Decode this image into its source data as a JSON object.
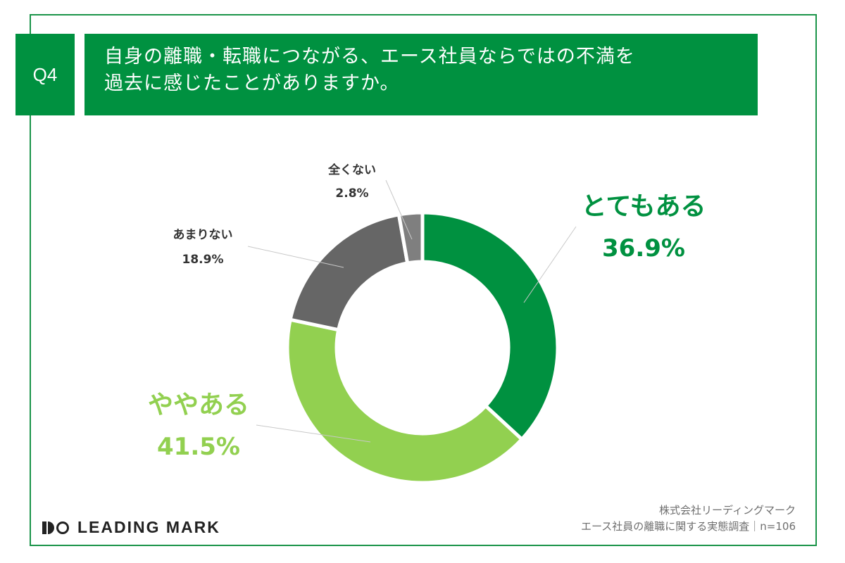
{
  "question": {
    "badge": "Q4",
    "lines": [
      "自身の離職・転職につながる、エース社員ならではの不満を",
      "過去に感じたことがありますか。"
    ]
  },
  "chart_data": {
    "type": "pie",
    "style": "donut",
    "start_angle_deg": 0,
    "direction": "clockwise",
    "slices": [
      {
        "label": "とてもある",
        "value": 36.9,
        "value_label": "36.9%",
        "color": "#009140"
      },
      {
        "label": "ややある",
        "value": 41.5,
        "value_label": "41.5%",
        "color": "#92d050"
      },
      {
        "label": "あまりない",
        "value": 18.9,
        "value_label": "18.9%",
        "color": "#666666"
      },
      {
        "label": "全くない",
        "value": 2.8,
        "value_label": "2.8%",
        "color": "#7f7f7f"
      }
    ]
  },
  "footer": {
    "logo_text": "LEADING MARK",
    "source_lines": [
      "株式会社リーディングマーク",
      "エース社員の離職に関する実態調査｜n=106"
    ]
  },
  "colors": {
    "brand_green": "#009140",
    "frame_green": "#1a9449",
    "light_green": "#92d050",
    "dark_gray": "#666666",
    "mid_gray": "#7f7f7f"
  }
}
